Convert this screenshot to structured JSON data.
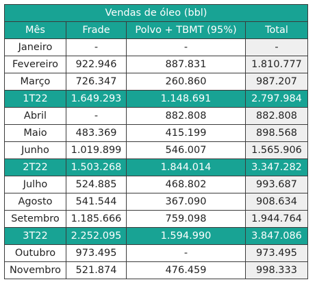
{
  "title": "Vendas de óleo (bbl)",
  "headers": [
    "Mês",
    "Frade",
    "Polvo + TBMT (95%)",
    "Total"
  ],
  "rows": [
    {
      "mes": "Janeiro",
      "frade": "-",
      "polvo": "-",
      "total": "-",
      "quarter": false
    },
    {
      "mes": "Fevereiro",
      "frade": "922.946",
      "polvo": "887.831",
      "total": "1.810.777",
      "quarter": false
    },
    {
      "mes": "Março",
      "frade": "726.347",
      "polvo": "260.860",
      "total": "987.207",
      "quarter": false
    },
    {
      "mes": "1T22",
      "frade": "1.649.293",
      "polvo": "1.148.691",
      "total": "2.797.984",
      "quarter": true
    },
    {
      "mes": "Abril",
      "frade": "-",
      "polvo": "882.808",
      "total": "882.808",
      "quarter": false
    },
    {
      "mes": "Maio",
      "frade": "483.369",
      "polvo": "415.199",
      "total": "898.568",
      "quarter": false
    },
    {
      "mes": "Junho",
      "frade": "1.019.899",
      "polvo": "546.007",
      "total": "1.565.906",
      "quarter": false
    },
    {
      "mes": "2T22",
      "frade": "1.503.268",
      "polvo": "1.844.014",
      "total": "3.347.282",
      "quarter": true
    },
    {
      "mes": "Julho",
      "frade": "524.885",
      "polvo": "468.802",
      "total": "993.687",
      "quarter": false
    },
    {
      "mes": "Agosto",
      "frade": "541.544",
      "polvo": "367.090",
      "total": "908.634",
      "quarter": false
    },
    {
      "mes": "Setembro",
      "frade": "1.185.666",
      "polvo": "759.098",
      "total": "1.944.764",
      "quarter": false
    },
    {
      "mes": "3T22",
      "frade": "2.252.095",
      "polvo": "1.594.990",
      "total": "3.847.086",
      "quarter": true
    },
    {
      "mes": "Outubro",
      "frade": "973.495",
      "polvo": "-",
      "total": "973.495",
      "quarter": false
    },
    {
      "mes": "Novembro",
      "frade": "521.874",
      "polvo": "476.459",
      "total": "998.333",
      "quarter": false
    }
  ],
  "colors": {
    "header": "#18a394",
    "total_col": "#efefef"
  }
}
